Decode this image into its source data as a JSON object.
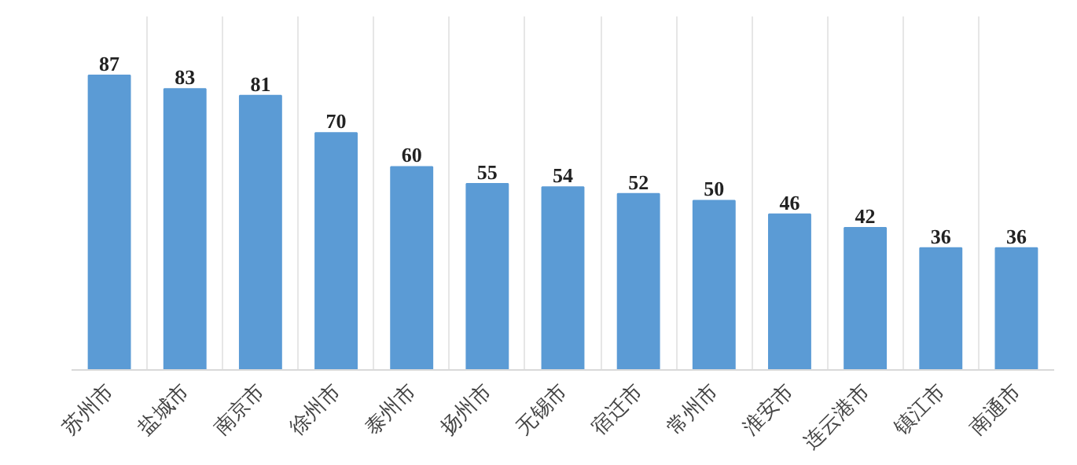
{
  "chart_data": {
    "type": "bar",
    "categories": [
      "苏州市",
      "盐城市",
      "南京市",
      "徐州市",
      "泰州市",
      "扬州市",
      "无锡市",
      "宿迁市",
      "常州市",
      "淮安市",
      "连云港市",
      "镇江市",
      "南通市"
    ],
    "values": [
      87,
      83,
      81,
      70,
      60,
      55,
      54,
      52,
      50,
      46,
      42,
      36,
      36
    ],
    "color": "#5b9bd5",
    "data_labels": true,
    "grid": "x"
  }
}
